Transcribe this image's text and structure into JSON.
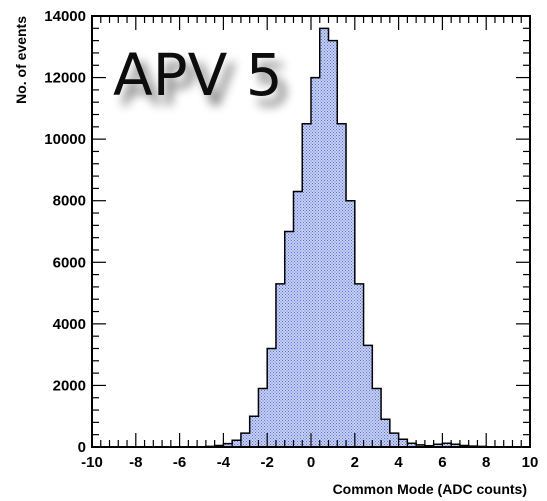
{
  "chart_data": {
    "type": "bar",
    "histogram": true,
    "title": "APV 5",
    "xlabel": "Common Mode (ADC counts)",
    "ylabel": "No. of events",
    "xlim": [
      -10,
      10
    ],
    "ylim": [
      0,
      14000
    ],
    "xticks": [
      -10,
      -8,
      -6,
      -4,
      -2,
      0,
      2,
      4,
      6,
      8,
      10
    ],
    "yticks": [
      0,
      2000,
      4000,
      6000,
      8000,
      10000,
      12000,
      14000
    ],
    "xtick_labels": [
      "-10",
      "-8",
      "-6",
      "-4",
      "-2",
      "0",
      "2",
      "4",
      "6",
      "8",
      "10"
    ],
    "ytick_labels": [
      "0",
      "2000",
      "4000",
      "6000",
      "8000",
      "10000",
      "12000",
      "14000"
    ],
    "bin_width": 0.4,
    "bin_edges_start": -5.2,
    "values": [
      10,
      20,
      50,
      110,
      220,
      450,
      1000,
      1900,
      3200,
      5300,
      7000,
      8300,
      10500,
      12000,
      13600,
      13200,
      10500,
      8000,
      5300,
      3300,
      1900,
      900,
      450,
      250,
      120,
      70,
      40,
      90,
      120,
      90,
      50,
      30,
      20,
      10
    ],
    "fill_color": "#c6d0f3",
    "hatch_color": "#5b6fd0",
    "grid": false,
    "legend": "none"
  }
}
